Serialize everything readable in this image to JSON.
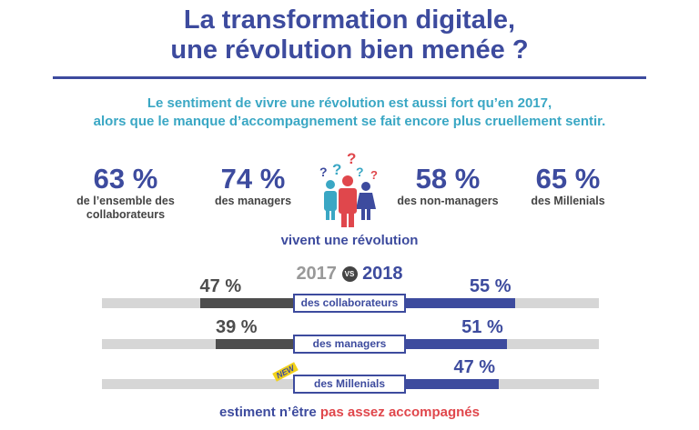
{
  "title": [
    "La transformation digitale,",
    "une révolution bien menée ?"
  ],
  "subtitle": [
    "Le sentiment de vivre une révolution est aussi fort qu’en 2017,",
    "alors que le manque d’accompagnement se fait encore plus cruellement sentir."
  ],
  "stats": [
    {
      "value": "63 %",
      "label1": "de l’ensemble des",
      "label2": "collaborateurs"
    },
    {
      "value": "74 %",
      "label1": "des managers",
      "label2": ""
    },
    {
      "value": "58 %",
      "label1": "des non-managers",
      "label2": ""
    },
    {
      "value": "65 %",
      "label1": "des Millenials",
      "label2": ""
    }
  ],
  "icon": "people-questions-icon",
  "stats_caption": "vivent une révolution",
  "comparison": {
    "y2017": "2017",
    "vs": "VS",
    "y2018": "2018",
    "new_badge": "NEW"
  },
  "footer": {
    "part1": "estiment n’être ",
    "part2": "pas assez accompagnés"
  },
  "colors": {
    "blue": "#3d4b9e",
    "teal": "#3aa7c4",
    "red": "#e0474c",
    "dark": "#4d4d4d",
    "gray": "#d6d6d6"
  },
  "chart_data": {
    "type": "bar",
    "categories": [
      "des collaborateurs",
      "des managers",
      "des Millenials"
    ],
    "series": [
      {
        "name": "2017",
        "values": [
          47,
          39,
          null
        ],
        "labels": [
          "47 %",
          "39 %",
          ""
        ]
      },
      {
        "name": "2018",
        "values": [
          55,
          51,
          47
        ],
        "labels": [
          "55 %",
          "51 %",
          "47 %"
        ]
      }
    ]
  }
}
